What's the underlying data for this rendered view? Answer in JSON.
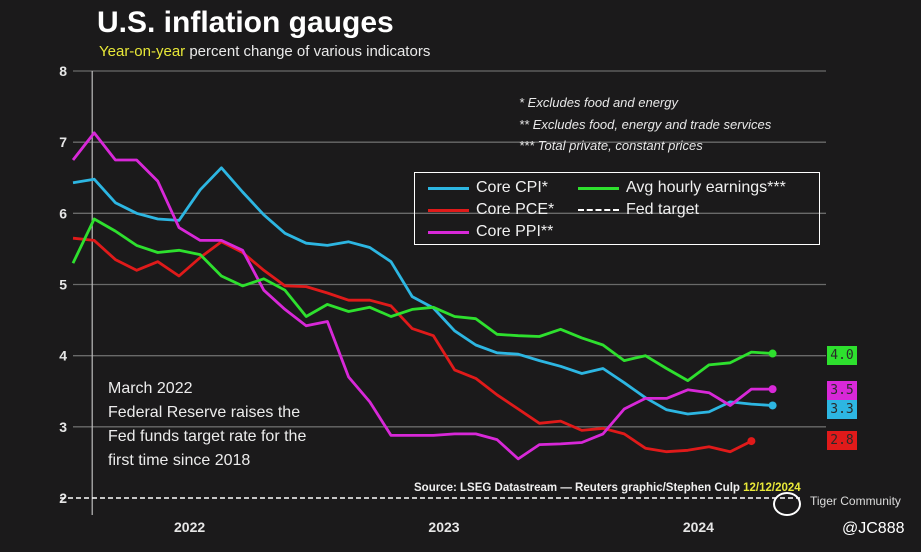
{
  "title": "U.S. inflation gauges",
  "subtitle": {
    "highlight": "Year-on-year",
    "rest": " percent change of various indicators"
  },
  "notes": [
    "* Excludes food and energy",
    "** Excludes food, energy and trade services",
    "*** Total private, constant prices"
  ],
  "legend": [
    {
      "label": "Core CPI*",
      "color": "#2db6e2",
      "style": "solid"
    },
    {
      "label": "Core PCE*",
      "color": "#e01a1a",
      "style": "solid"
    },
    {
      "label": "Core PPI**",
      "color": "#d828d8",
      "style": "solid"
    },
    {
      "label": "Avg hourly earnings***",
      "color": "#2ee02e",
      "style": "solid"
    },
    {
      "label": "Fed target",
      "color": "#ffffff",
      "style": "dashed"
    }
  ],
  "annotation": [
    "March 2022",
    "Federal Reserve raises the",
    "Fed funds target rate for the",
    "first time since 2018"
  ],
  "source": {
    "text": "Source: LSEG Datastream — Reuters graphic/Stephen Culp ",
    "date": "12/12/2024"
  },
  "watermark": "Tiger Community",
  "handle": "@JC888",
  "chart_data": {
    "type": "line",
    "title": "U.S. inflation gauges",
    "subtitle": "Year-on-year percent change of various indicators",
    "xlabel": "",
    "ylabel": "",
    "ylim": [
      2,
      8
    ],
    "yticks": [
      2,
      3,
      4,
      5,
      6,
      7,
      8
    ],
    "xtick_labels": [
      "2022",
      "2023",
      "2024"
    ],
    "x_start": "Feb 2022",
    "x_unit": "month",
    "grid": true,
    "legend_position": "top-right",
    "reference_line": {
      "name": "Fed target",
      "value": 2,
      "style": "dashed"
    },
    "event_marker": {
      "label": "March 2022",
      "x_index": 1
    },
    "series": [
      {
        "name": "Core CPI*",
        "color": "#2db6e2",
        "end_label": "3.3",
        "values": [
          6.43,
          6.48,
          6.15,
          6.0,
          5.92,
          5.9,
          6.33,
          6.64,
          6.3,
          5.98,
          5.72,
          5.58,
          5.55,
          5.6,
          5.52,
          5.32,
          4.83,
          4.67,
          4.35,
          4.15,
          4.04,
          4.02,
          3.93,
          3.85,
          3.75,
          3.82,
          3.62,
          3.41,
          3.24,
          3.18,
          3.21,
          3.35,
          3.32,
          3.3
        ]
      },
      {
        "name": "Core PCE*",
        "color": "#e01a1a",
        "end_label": "2.8",
        "values": [
          5.65,
          5.62,
          5.35,
          5.2,
          5.32,
          5.12,
          5.38,
          5.6,
          5.45,
          5.2,
          4.98,
          4.97,
          4.88,
          4.78,
          4.78,
          4.7,
          4.38,
          4.28,
          3.8,
          3.68,
          3.45,
          3.25,
          3.05,
          3.08,
          2.95,
          2.98,
          2.9,
          2.7,
          2.65,
          2.67,
          2.72,
          2.65,
          2.8
        ]
      },
      {
        "name": "Core PPI**",
        "color": "#d828d8",
        "end_label": "3.5",
        "values": [
          6.75,
          7.13,
          6.75,
          6.75,
          6.45,
          5.8,
          5.62,
          5.62,
          5.48,
          4.92,
          4.65,
          4.42,
          4.48,
          3.7,
          3.35,
          2.88,
          2.88,
          2.88,
          2.9,
          2.9,
          2.82,
          2.55,
          2.75,
          2.76,
          2.78,
          2.9,
          3.25,
          3.4,
          3.4,
          3.52,
          3.48,
          3.3,
          3.53,
          3.53
        ]
      },
      {
        "name": "Avg hourly earnings***",
        "color": "#2ee02e",
        "end_label": "4.0",
        "values": [
          5.3,
          5.92,
          5.75,
          5.55,
          5.45,
          5.48,
          5.42,
          5.12,
          4.98,
          5.08,
          4.92,
          4.55,
          4.72,
          4.62,
          4.68,
          4.55,
          4.65,
          4.68,
          4.55,
          4.52,
          4.3,
          4.28,
          4.27,
          4.37,
          4.25,
          4.15,
          3.93,
          4.0,
          3.82,
          3.65,
          3.87,
          3.9,
          4.05,
          4.03
        ]
      }
    ]
  }
}
